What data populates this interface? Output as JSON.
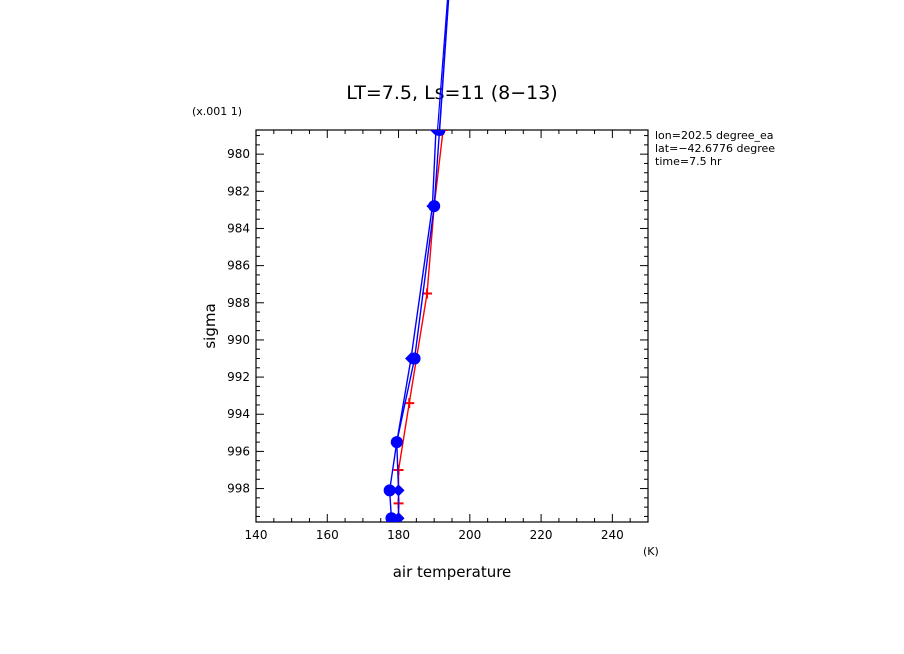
{
  "chart_data": {
    "type": "line",
    "title": "LT=7.5, Ls=11 (8−13)",
    "xlabel": "air temperature",
    "ylabel": "sigma",
    "x_units": "(K)",
    "y_scale_label": "(x.001 1)",
    "xlim": [
      140,
      250
    ],
    "ylim": [
      999.8,
      978.7
    ],
    "x_ticks": [
      "140",
      "160",
      "180",
      "200",
      "220",
      "240"
    ],
    "y_ticks": [
      "980",
      "982",
      "984",
      "986",
      "988",
      "990",
      "992",
      "994",
      "996",
      "998"
    ],
    "info_lines": [
      "lon=202.5 degree_ea",
      "lat=−42.6776 degree",
      "time=7.5 hr"
    ],
    "series": [
      {
        "color": "#ff0000",
        "marker": "plus",
        "points": [
          [
            178.5,
            999.7
          ],
          [
            180,
            999.6
          ],
          [
            180,
            998.8
          ],
          [
            180,
            998.1
          ],
          [
            180,
            997.0
          ],
          [
            183,
            993.4
          ],
          [
            188,
            987.5
          ],
          [
            190,
            982.8
          ],
          [
            192.5,
            978.7
          ]
        ]
      },
      {
        "color": "#0000ff",
        "marker": "circle",
        "points": [
          [
            178,
            999.6
          ],
          [
            177.5,
            998.1
          ],
          [
            179.5,
            995.5
          ],
          [
            184.5,
            991.0
          ],
          [
            190,
            982.8
          ],
          [
            191.5,
            978.7
          ]
        ]
      },
      {
        "color": "#0000ff",
        "marker": "diamond",
        "points": [
          [
            180,
            999.6
          ],
          [
            180,
            998.1
          ],
          [
            179.5,
            995.5
          ],
          [
            183.5,
            991.0
          ],
          [
            189.5,
            982.8
          ],
          [
            190.5,
            978.7
          ]
        ]
      }
    ],
    "above_axes_line": {
      "color": "#0000ff",
      "from": [
        191.5,
        978.7
      ],
      "to": [
        194,
        972.0
      ]
    }
  }
}
